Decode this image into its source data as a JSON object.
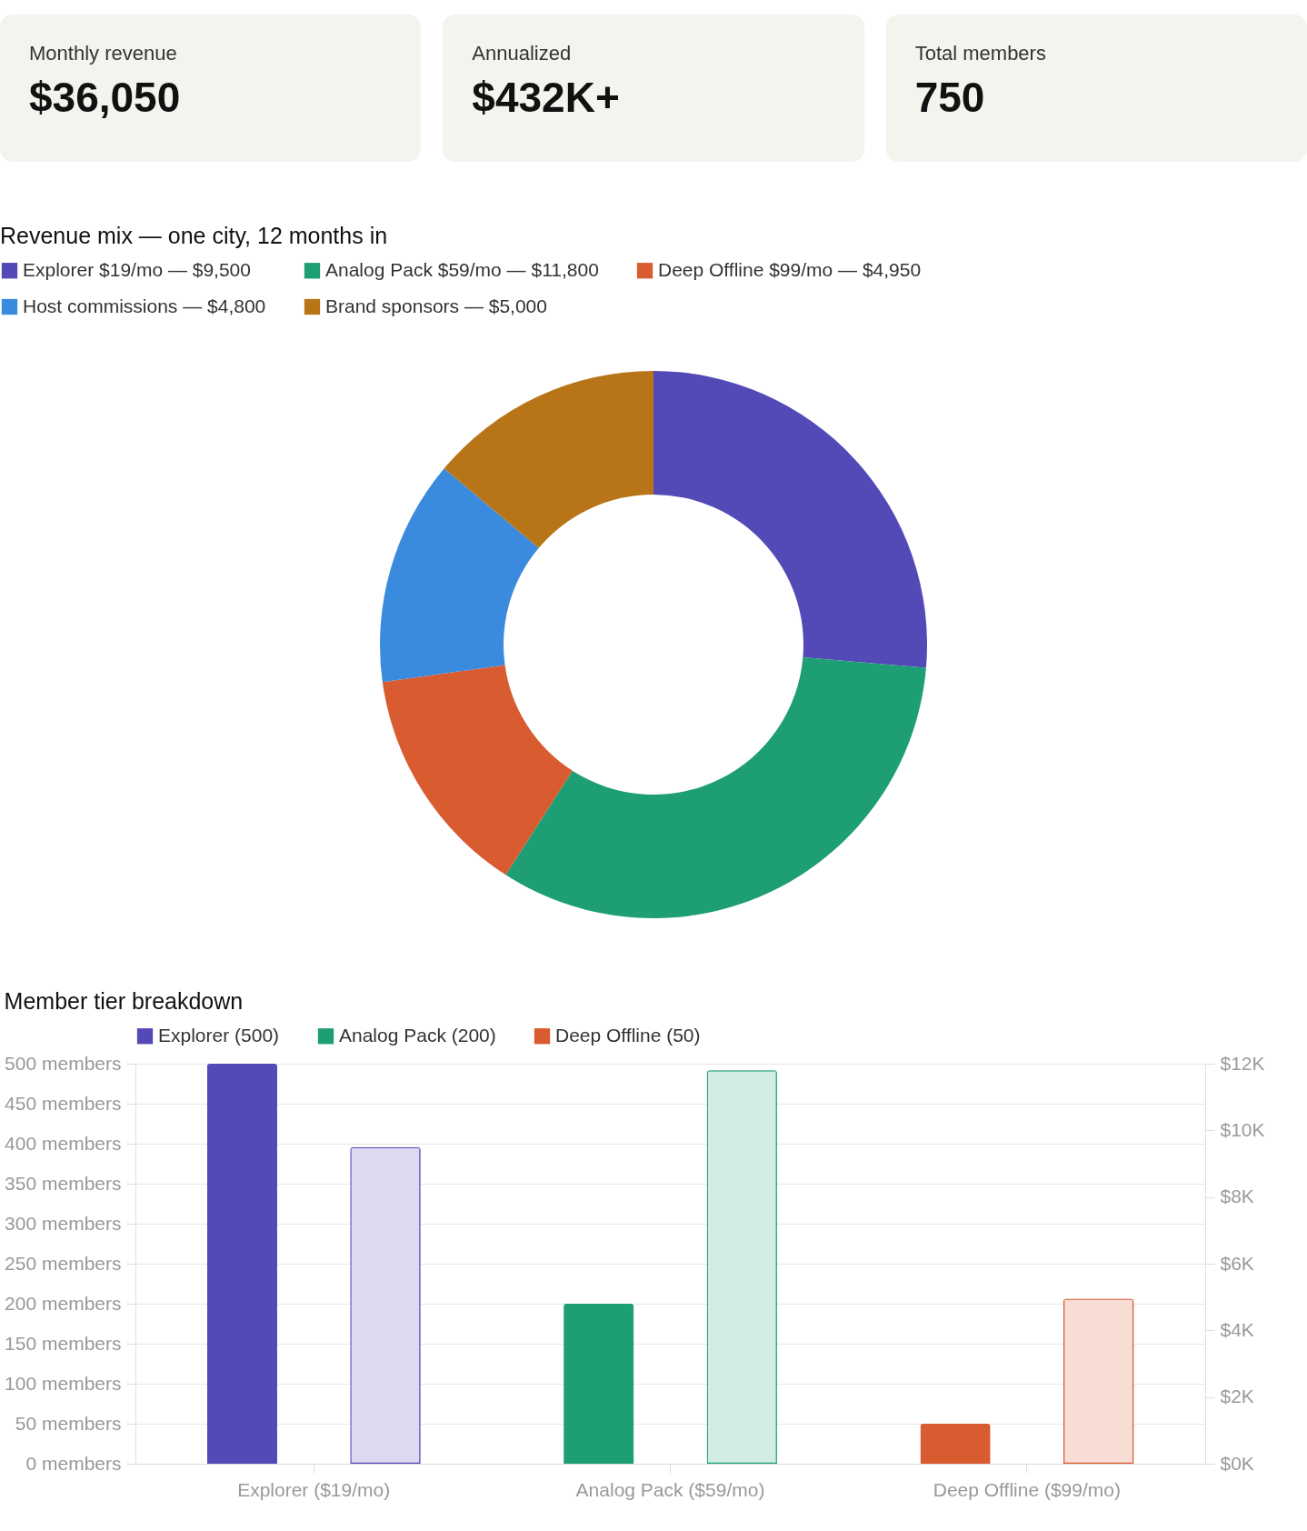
{
  "chart_data": [
    {
      "type": "other",
      "annotations": [
        "Monthly revenue",
        "$36,050",
        "Annualized",
        "$432K+",
        "Total members",
        "750"
      ]
    },
    {
      "type": "donut",
      "title": "Revenue mix — one city, 12 months in",
      "categories": [
        "Explorer $19/mo — $9,500",
        "Analog Pack $59/mo — $11,800",
        "Deep Offline $99/mo — $4,950",
        "Host commissions — $4,800",
        "Brand sponsors — $5,000"
      ],
      "values": [
        9500,
        11800,
        4950,
        4800,
        5000
      ],
      "colors": [
        "#5349b7",
        "#1e9e74",
        "#d95b30",
        "#3a8ade",
        "#b87518"
      ],
      "legend": "top left"
    },
    {
      "type": "bar",
      "title": "Member tier breakdown",
      "categories": [
        "Explorer ($19/mo)",
        "Analog Pack ($59/mo)",
        "Deep Offline ($99/mo)"
      ],
      "series": [
        {
          "name": "Explorer (500)",
          "color": "#5349b7",
          "values": [
            500,
            null,
            null
          ]
        },
        {
          "name": "Analog Pack (200)",
          "color": "#1e9e74",
          "values": [
            null,
            200,
            null
          ]
        },
        {
          "name": "Deep Offline (50)",
          "color": "#d95b30",
          "values": [
            null,
            null,
            50
          ]
        },
        {
          "axis": "y2",
          "colors": [
            "#dcd9f1",
            "#d1ece2",
            "#f8ddd5"
          ],
          "values": [
            9500,
            11800,
            4950
          ]
        }
      ],
      "ylim": [
        0,
        500
      ],
      "yticks": [
        {
          "value": 0,
          "label": "0 members"
        },
        {
          "value": 50,
          "label": "50 members"
        },
        {
          "value": 100,
          "label": "100 members"
        },
        {
          "value": 150,
          "label": "150 members"
        },
        {
          "value": 200,
          "label": "200 members"
        },
        {
          "value": 250,
          "label": "250 members"
        },
        {
          "value": 300,
          "label": "300 members"
        },
        {
          "value": 350,
          "label": "350 members"
        },
        {
          "value": 400,
          "label": "400 members"
        },
        {
          "value": 450,
          "label": "450 members"
        },
        {
          "value": 500,
          "label": "500 members"
        }
      ],
      "y2lim": [
        0,
        12000
      ],
      "y2ticks": [
        {
          "value": 0,
          "label": "$0K"
        },
        {
          "value": 2000,
          "label": "$2K"
        },
        {
          "value": 4000,
          "label": "$4K"
        },
        {
          "value": 6000,
          "label": "$6K"
        },
        {
          "value": 8000,
          "label": "$8K"
        },
        {
          "value": 10000,
          "label": "$10K"
        },
        {
          "value": 12000,
          "label": "$12K"
        }
      ],
      "grid": "y",
      "legend": "top left"
    }
  ]
}
